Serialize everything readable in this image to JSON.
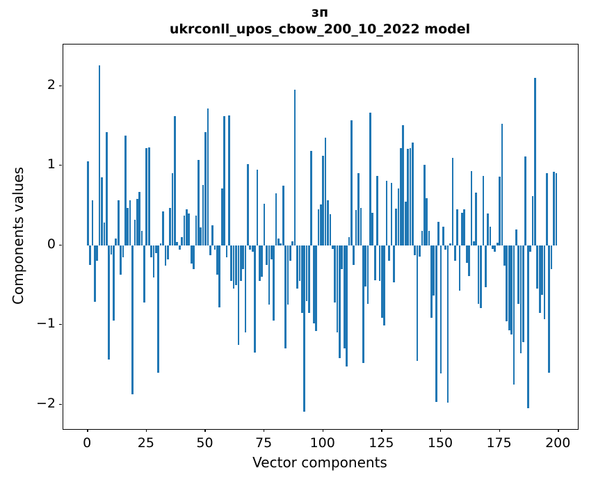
{
  "figure": {
    "title_line1": "зп",
    "title_line2": "ukrconll_upos_cbow_200_10_2022 model"
  },
  "chart_data": {
    "type": "bar",
    "title": "зп — ukrconll_upos_cbow_200_10_2022 model",
    "xlabel": "Vector components",
    "ylabel": "Components values",
    "bar_color": "#1f77b4",
    "axis_color": "#000000",
    "background_color": "#ffffff",
    "grid": false,
    "legend": false,
    "x_start_index": 0,
    "x_tick_values": [
      0,
      25,
      50,
      75,
      100,
      125,
      150,
      175,
      200
    ],
    "x_tick_labels": [
      "0",
      "25",
      "50",
      "75",
      "100",
      "125",
      "150",
      "175",
      "200"
    ],
    "y_tick_values": [
      -2,
      -1,
      0,
      1,
      2
    ],
    "y_tick_labels": [
      "−2",
      "−1",
      "0",
      "1",
      "2"
    ],
    "xlim": [
      -10.4,
      208.2
    ],
    "ylim": [
      -2.31,
      2.52
    ],
    "bar_width_units": 0.8,
    "values": [
      1.05,
      -0.25,
      0.56,
      -0.71,
      -0.2,
      2.26,
      0.85,
      0.28,
      1.42,
      -1.44,
      -0.12,
      -0.95,
      0.08,
      0.56,
      -0.37,
      -0.15,
      1.38,
      0.47,
      0.56,
      -1.87,
      0.32,
      0.58,
      0.67,
      0.18,
      -0.72,
      1.22,
      1.23,
      -0.15,
      -0.41,
      -0.1,
      -1.6,
      0.02,
      0.42,
      -0.26,
      -0.18,
      0.47,
      0.9,
      1.62,
      0.04,
      -0.06,
      0.1,
      0.37,
      0.45,
      0.4,
      -0.23,
      -0.3,
      0.37,
      1.07,
      0.22,
      0.76,
      1.42,
      1.72,
      -0.13,
      0.25,
      -0.06,
      -0.37,
      -0.78,
      0.71,
      1.62,
      -0.15,
      1.63,
      -0.45,
      -0.55,
      -0.5,
      -1.25,
      -0.45,
      -0.3,
      -1.1,
      1.02,
      -0.06,
      -0.08,
      -1.35,
      0.95,
      -0.45,
      -0.4,
      0.52,
      -0.25,
      -0.75,
      -0.18,
      -0.95,
      0.65,
      0.08,
      0.02,
      0.75,
      -1.3,
      -0.75,
      -0.2,
      0.05,
      1.95,
      -0.55,
      -0.45,
      -0.85,
      -2.09,
      -0.7,
      -0.85,
      1.18,
      -0.98,
      -1.08,
      0.45,
      0.51,
      1.12,
      1.35,
      0.56,
      0.39,
      -0.05,
      -0.72,
      -1.1,
      -1.42,
      -0.3,
      -1.3,
      -1.52,
      0.1,
      1.57,
      -0.25,
      0.44,
      0.9,
      0.47,
      -1.48,
      -0.52,
      -0.74,
      1.66,
      0.41,
      -0.44,
      0.87,
      -0.45,
      -0.91,
      -1.01,
      0.81,
      -0.2,
      0.78,
      -0.47,
      0.46,
      0.71,
      1.22,
      1.51,
      0.55,
      1.21,
      1.22,
      1.29,
      -0.13,
      -1.45,
      -0.14,
      0.18,
      1.01,
      0.59,
      0.18,
      -0.91,
      -0.63,
      -1.97,
      0.29,
      -1.61,
      0.23,
      -0.06,
      -1.98,
      0.02,
      1.1,
      -0.2,
      0.45,
      -0.57,
      0.41,
      0.45,
      -0.22,
      -0.39,
      0.93,
      0.05,
      0.66,
      -0.74,
      -0.79,
      0.87,
      -0.53,
      0.4,
      0.23,
      -0.05,
      -0.08,
      0.03,
      0.86,
      1.52,
      -0.26,
      -0.96,
      -1.07,
      -1.12,
      -1.75,
      0.2,
      -0.74,
      -1.36,
      -1.22,
      1.11,
      -2.05,
      -0.08,
      0.62,
      2.1,
      -0.55,
      -0.85,
      -0.62,
      -0.93,
      0.9,
      -1.6,
      -0.3,
      0.92,
      0.9
    ]
  }
}
